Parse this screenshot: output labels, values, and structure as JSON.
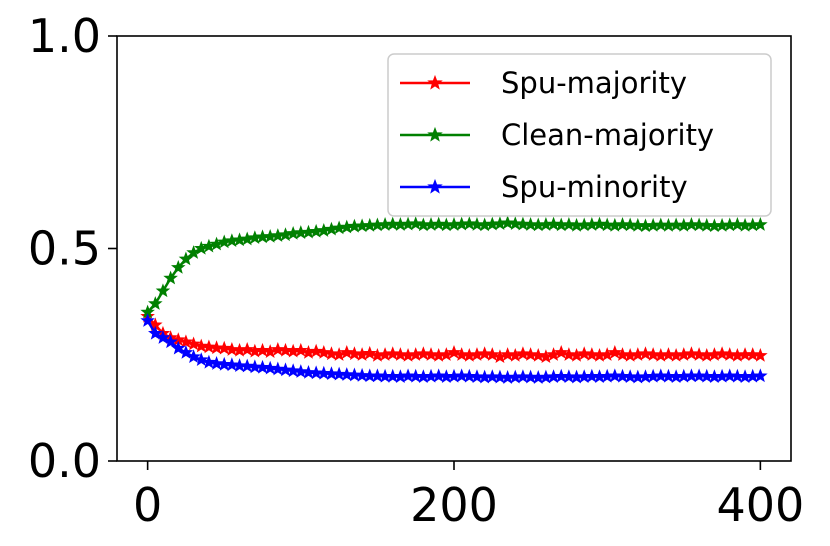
{
  "chart_data": {
    "type": "line",
    "title": "",
    "xlabel": "",
    "ylabel": "",
    "xlim": [
      -20,
      420
    ],
    "ylim": [
      0,
      1
    ],
    "x_ticks": [
      0,
      200,
      400
    ],
    "x_tick_labels": [
      "0",
      "200",
      "400"
    ],
    "y_ticks": [
      0,
      0.5,
      1
    ],
    "y_tick_labels": [
      "0.0",
      "0.5",
      "1.0"
    ],
    "grid": false,
    "legend_position": "top-right",
    "x": [
      0,
      5,
      10,
      15,
      20,
      25,
      30,
      35,
      40,
      45,
      50,
      55,
      60,
      65,
      70,
      75,
      80,
      85,
      90,
      95,
      100,
      105,
      110,
      115,
      120,
      125,
      130,
      135,
      140,
      145,
      150,
      155,
      160,
      165,
      170,
      175,
      180,
      185,
      190,
      195,
      200,
      205,
      210,
      215,
      220,
      225,
      230,
      235,
      240,
      245,
      250,
      255,
      260,
      265,
      270,
      275,
      280,
      285,
      290,
      295,
      300,
      305,
      310,
      315,
      320,
      325,
      330,
      335,
      340,
      345,
      350,
      355,
      360,
      365,
      370,
      375,
      380,
      385,
      390,
      395,
      400
    ],
    "series": [
      {
        "name": "Spu-majority",
        "color": "#ff0000",
        "marker": "star",
        "values": [
          0.34,
          0.32,
          0.3,
          0.29,
          0.285,
          0.28,
          0.275,
          0.27,
          0.268,
          0.266,
          0.265,
          0.262,
          0.26,
          0.262,
          0.258,
          0.26,
          0.257,
          0.262,
          0.26,
          0.258,
          0.26,
          0.255,
          0.258,
          0.255,
          0.252,
          0.25,
          0.255,
          0.252,
          0.25,
          0.253,
          0.248,
          0.25,
          0.252,
          0.25,
          0.248,
          0.25,
          0.252,
          0.25,
          0.248,
          0.25,
          0.255,
          0.25,
          0.248,
          0.25,
          0.252,
          0.25,
          0.245,
          0.25,
          0.248,
          0.252,
          0.25,
          0.248,
          0.245,
          0.25,
          0.255,
          0.25,
          0.248,
          0.252,
          0.25,
          0.248,
          0.25,
          0.255,
          0.25,
          0.248,
          0.25,
          0.252,
          0.25,
          0.248,
          0.25,
          0.248,
          0.25,
          0.252,
          0.25,
          0.248,
          0.25,
          0.252,
          0.25,
          0.248,
          0.25,
          0.25,
          0.248
        ]
      },
      {
        "name": "Clean-majority",
        "color": "#008000",
        "marker": "star",
        "values": [
          0.35,
          0.37,
          0.4,
          0.43,
          0.455,
          0.475,
          0.49,
          0.5,
          0.505,
          0.51,
          0.515,
          0.518,
          0.52,
          0.522,
          0.525,
          0.527,
          0.528,
          0.53,
          0.532,
          0.535,
          0.537,
          0.538,
          0.54,
          0.542,
          0.545,
          0.548,
          0.55,
          0.552,
          0.553,
          0.554,
          0.555,
          0.556,
          0.557,
          0.556,
          0.557,
          0.558,
          0.555,
          0.556,
          0.557,
          0.555,
          0.556,
          0.557,
          0.558,
          0.556,
          0.555,
          0.557,
          0.558,
          0.56,
          0.558,
          0.557,
          0.556,
          0.555,
          0.556,
          0.557,
          0.555,
          0.556,
          0.554,
          0.555,
          0.556,
          0.557,
          0.555,
          0.554,
          0.556,
          0.555,
          0.554,
          0.553,
          0.554,
          0.555,
          0.554,
          0.555,
          0.554,
          0.556,
          0.555,
          0.554,
          0.553,
          0.554,
          0.555,
          0.556,
          0.554,
          0.555,
          0.556
        ]
      },
      {
        "name": "Spu-minority",
        "color": "#0000ff",
        "marker": "star",
        "values": [
          0.33,
          0.3,
          0.29,
          0.28,
          0.265,
          0.255,
          0.245,
          0.238,
          0.232,
          0.229,
          0.227,
          0.226,
          0.224,
          0.223,
          0.221,
          0.22,
          0.218,
          0.216,
          0.214,
          0.212,
          0.21,
          0.208,
          0.207,
          0.206,
          0.205,
          0.204,
          0.203,
          0.202,
          0.201,
          0.2,
          0.2,
          0.199,
          0.199,
          0.198,
          0.2,
          0.199,
          0.198,
          0.199,
          0.2,
          0.198,
          0.199,
          0.2,
          0.199,
          0.198,
          0.197,
          0.198,
          0.197,
          0.196,
          0.197,
          0.198,
          0.197,
          0.196,
          0.197,
          0.198,
          0.199,
          0.198,
          0.197,
          0.198,
          0.199,
          0.198,
          0.199,
          0.2,
          0.199,
          0.198,
          0.197,
          0.198,
          0.199,
          0.2,
          0.199,
          0.198,
          0.199,
          0.2,
          0.2,
          0.199,
          0.198,
          0.199,
          0.2,
          0.199,
          0.198,
          0.199,
          0.2
        ]
      }
    ]
  }
}
